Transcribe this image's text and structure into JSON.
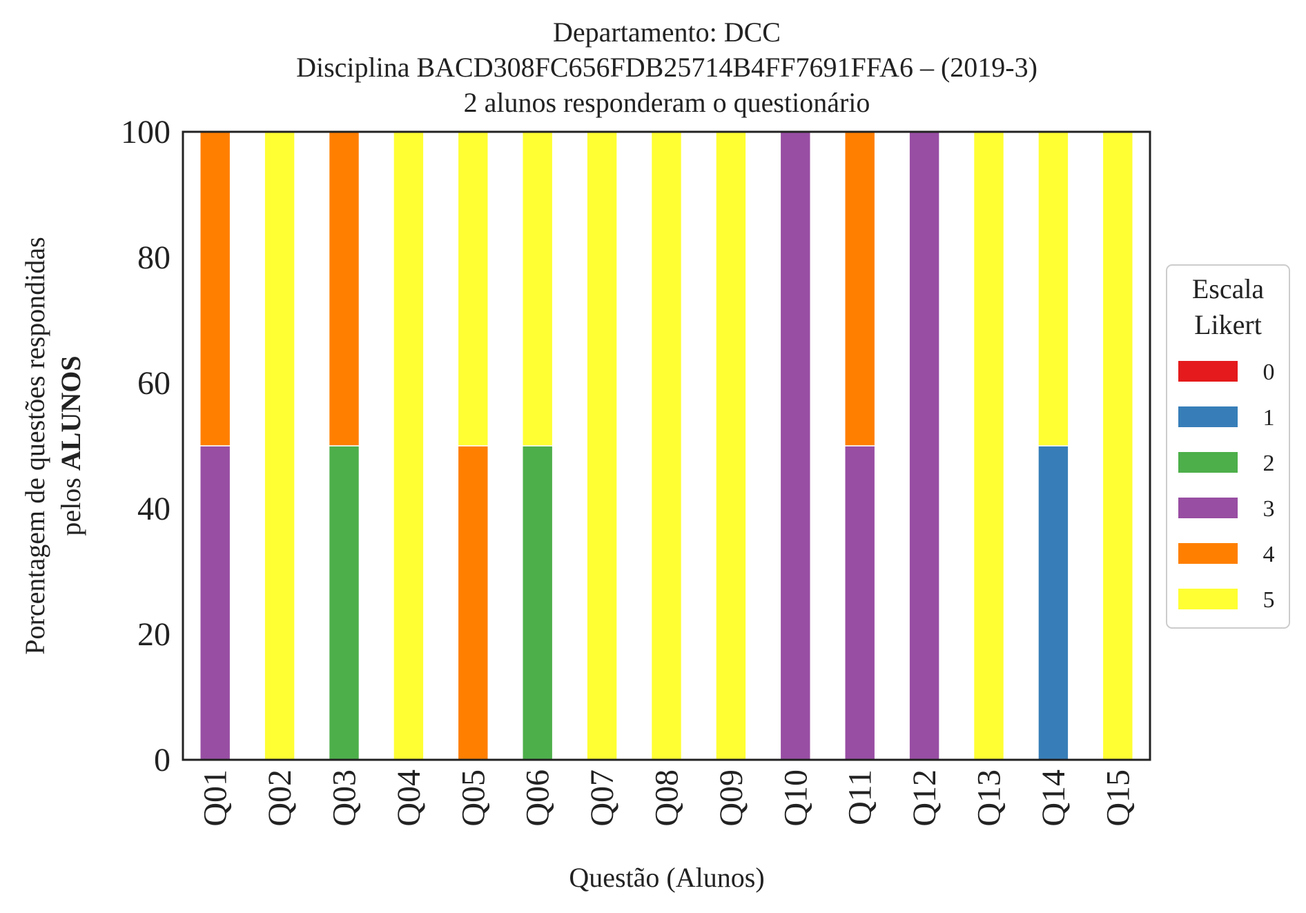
{
  "chart_data": {
    "type": "bar",
    "stacked": true,
    "title_lines": [
      "Departamento: DCC",
      "Disciplina BACD308FC656FDB25714B4FF7691FFA6 – (2019-3)",
      "2 alunos responderam o questionário"
    ],
    "xlabel": "Questão (Alunos)",
    "ylabel_line1": "Porcentagem de questões respondidas",
    "ylabel_line2_prefix": "pelos ",
    "ylabel_line2_bold": "ALUNOS",
    "ylim": [
      0,
      100
    ],
    "yticks": [
      "0",
      "20",
      "40",
      "60",
      "80",
      "100"
    ],
    "grid": false,
    "legend_position": "right",
    "legend_title_lines": [
      "Escala",
      "Likert"
    ],
    "categories": [
      "Q01",
      "Q02",
      "Q03",
      "Q04",
      "Q05",
      "Q06",
      "Q07",
      "Q08",
      "Q09",
      "Q10",
      "Q11",
      "Q12",
      "Q13",
      "Q14",
      "Q15"
    ],
    "series": [
      {
        "name": "0",
        "color": "#e41a1c",
        "values": [
          0,
          0,
          0,
          0,
          0,
          0,
          0,
          0,
          0,
          0,
          0,
          0,
          0,
          0,
          0
        ]
      },
      {
        "name": "1",
        "color": "#377eb8",
        "values": [
          0,
          0,
          0,
          0,
          0,
          0,
          0,
          0,
          0,
          0,
          0,
          0,
          0,
          50,
          0
        ]
      },
      {
        "name": "2",
        "color": "#4daf4a",
        "values": [
          0,
          0,
          50,
          0,
          0,
          50,
          0,
          0,
          0,
          0,
          0,
          0,
          0,
          0,
          0
        ]
      },
      {
        "name": "3",
        "color": "#984ea3",
        "values": [
          50,
          0,
          0,
          0,
          0,
          0,
          0,
          0,
          0,
          100,
          50,
          100,
          0,
          0,
          0
        ]
      },
      {
        "name": "4",
        "color": "#ff7f00",
        "values": [
          50,
          0,
          50,
          0,
          50,
          0,
          0,
          0,
          0,
          0,
          50,
          0,
          0,
          0,
          0
        ]
      },
      {
        "name": "5",
        "color": "#ffff33",
        "values": [
          0,
          100,
          0,
          100,
          50,
          50,
          100,
          100,
          100,
          0,
          0,
          0,
          100,
          50,
          100
        ]
      }
    ]
  }
}
